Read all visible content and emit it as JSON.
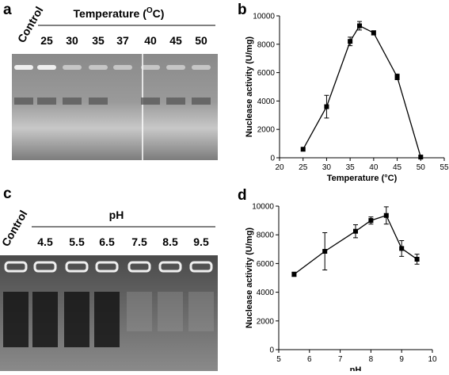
{
  "panels": {
    "a": {
      "letter": "a",
      "header_prefix": "Temperature (",
      "header_sup": "O",
      "header_suffix": "C)",
      "lanes": [
        "Control",
        "25",
        "30",
        "35",
        "37",
        "40",
        "45",
        "50"
      ]
    },
    "c": {
      "letter": "c",
      "header": "pH",
      "lanes": [
        "Control",
        "4.5",
        "5.5",
        "6.5",
        "7.5",
        "8.5",
        "9.5"
      ]
    }
  },
  "chart_data": [
    {
      "type": "line",
      "panel": "b",
      "xlabel": "Temperature (°C)",
      "ylabel": "Nuclease activity (U/mg)",
      "x": [
        25,
        30,
        35,
        37,
        40,
        45,
        50
      ],
      "values": [
        600,
        3600,
        8200,
        9300,
        8800,
        5700,
        50
      ],
      "errors": [
        0,
        800,
        300,
        300,
        150,
        200,
        0
      ],
      "color": "#000000",
      "xlim": [
        20,
        55
      ],
      "xticks": [
        20,
        25,
        30,
        35,
        40,
        45,
        50,
        55
      ],
      "ylim": [
        0,
        10000
      ],
      "yticks": [
        0,
        2000,
        4000,
        6000,
        8000,
        10000
      ]
    },
    {
      "type": "line",
      "panel": "d",
      "xlabel": "pH",
      "ylabel": "Nuclease activity (U/mg)",
      "x": [
        5.5,
        6.5,
        7.5,
        8,
        8.5,
        9,
        9.5
      ],
      "values": [
        5250,
        6850,
        8250,
        9000,
        9350,
        7050,
        6300
      ],
      "errors": [
        150,
        1300,
        450,
        250,
        600,
        550,
        350
      ],
      "color": "#000000",
      "xlim": [
        5,
        10
      ],
      "xticks": [
        5,
        6,
        7,
        8,
        9,
        10
      ],
      "ylim": [
        0,
        10000
      ],
      "yticks": [
        0,
        2000,
        4000,
        6000,
        8000,
        10000
      ]
    }
  ]
}
